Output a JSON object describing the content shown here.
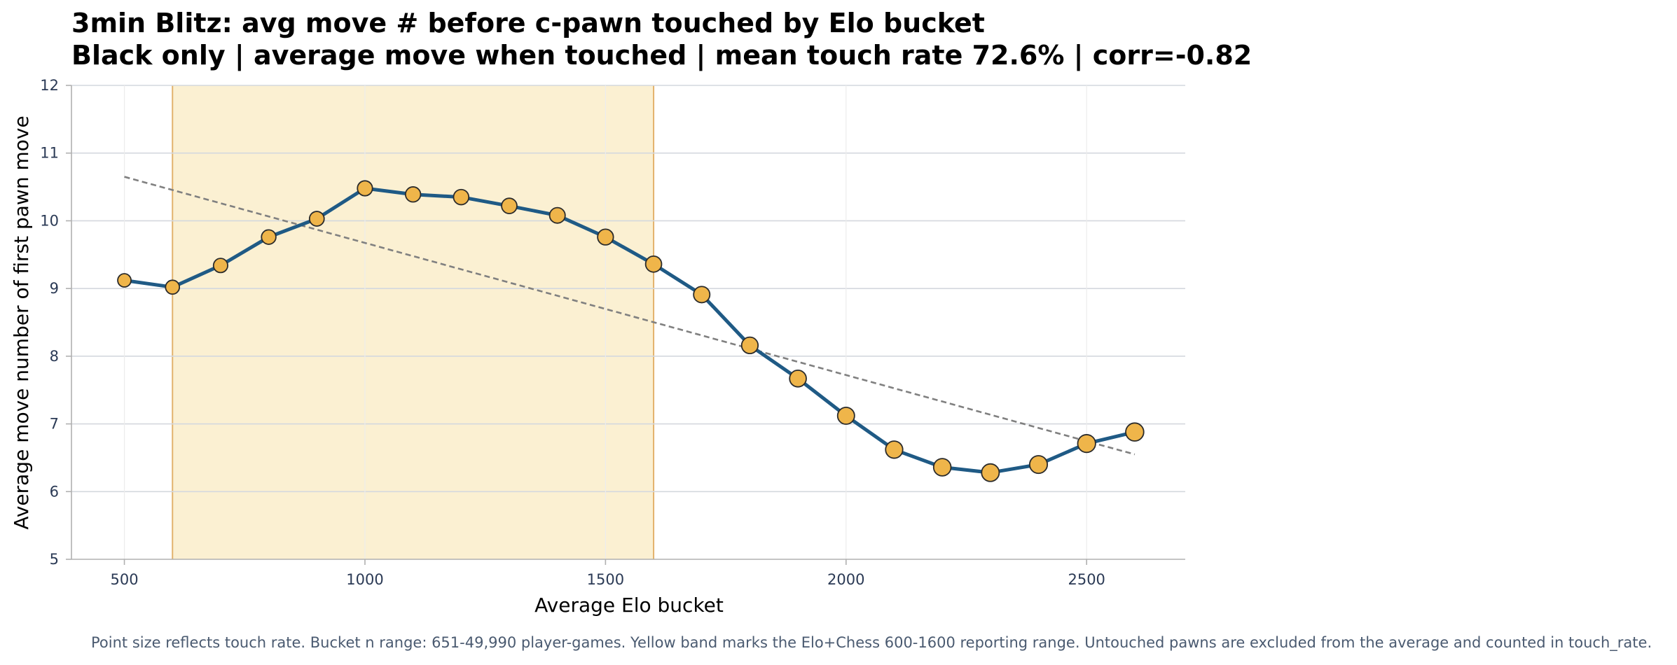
{
  "chart_data": {
    "type": "line",
    "title": "3min Blitz: avg move # before c-pawn touched by Elo bucket",
    "subtitle": "Black only | average move when touched | mean touch rate 72.6% | corr=-0.82",
    "xlabel": "Average Elo bucket",
    "ylabel": "Average move number of first pawn move",
    "xlim": [
      390,
      2705
    ],
    "ylim": [
      5,
      12
    ],
    "xticks": [
      500,
      1000,
      1500,
      2000,
      2500
    ],
    "yticks": [
      5,
      6,
      7,
      8,
      9,
      10,
      11,
      12
    ],
    "grid": true,
    "x": [
      500,
      600,
      700,
      800,
      900,
      1000,
      1100,
      1200,
      1300,
      1400,
      1500,
      1600,
      1700,
      1800,
      1900,
      2000,
      2100,
      2200,
      2300,
      2400,
      2500,
      2600
    ],
    "series": [
      {
        "values": [
          9.12,
          9.02,
          9.34,
          9.76,
          10.03,
          10.48,
          10.39,
          10.35,
          10.22,
          10.08,
          9.76,
          9.36,
          8.91,
          8.16,
          7.67,
          7.12,
          6.62,
          6.36,
          6.28,
          6.4,
          6.71,
          6.88
        ],
        "point_size": [
          0.5,
          0.55,
          0.58,
          0.6,
          0.62,
          0.65,
          0.66,
          0.67,
          0.68,
          0.7,
          0.72,
          0.74,
          0.76,
          0.78,
          0.8,
          0.82,
          0.84,
          0.86,
          0.88,
          0.89,
          0.9,
          0.92
        ]
      }
    ],
    "trend_line": {
      "x": [
        500,
        2600
      ],
      "y": [
        10.65,
        6.55
      ]
    },
    "highlight_band": {
      "x": [
        600,
        1600
      ]
    },
    "colors": {
      "line": "#1f5a85",
      "marker_fill": "#efb54a",
      "marker_edge": "#2b2b2b",
      "trend": "#808080",
      "band_fill": "#fbf0d2",
      "band_edge": "#e2b26c",
      "grid": "#d4d8de",
      "axis": "#b0b0b0"
    }
  },
  "footnote": "Point size reflects touch rate. Bucket n range: 651-49,990 player-games. Yellow band marks the Elo+Chess 600-1600 reporting range. Untouched pawns are excluded from the average and counted in touch_rate."
}
